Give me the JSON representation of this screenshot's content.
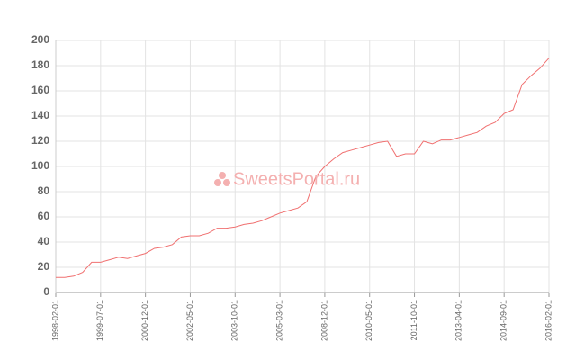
{
  "chart_data": {
    "type": "line",
    "watermark": "SweetsPortal.ru",
    "categories": [
      "1998-02-01",
      null,
      null,
      null,
      null,
      "1999-07-01",
      null,
      null,
      null,
      null,
      "2000-12-01",
      null,
      null,
      null,
      null,
      "2002-05-01",
      null,
      null,
      null,
      null,
      "2003-10-01",
      null,
      null,
      null,
      null,
      "2005-03-01",
      null,
      null,
      null,
      null,
      "2008-12-01",
      null,
      null,
      null,
      null,
      "2010-05-01",
      null,
      null,
      null,
      null,
      "2011-10-01",
      null,
      null,
      null,
      null,
      "2013-04-01",
      null,
      null,
      null,
      null,
      "2014-09-01",
      null,
      null,
      null,
      null,
      "2016-02-01"
    ],
    "series": [
      {
        "color": "#f07070",
        "values": [
          12,
          12,
          13,
          16,
          24,
          24,
          26,
          28,
          27,
          29,
          31,
          35,
          36,
          38,
          44,
          45,
          45,
          47,
          51,
          51,
          52,
          54,
          55,
          57,
          60,
          63,
          65,
          67,
          72,
          92,
          100,
          106,
          111,
          113,
          115,
          117,
          119,
          120,
          108,
          110,
          110,
          120,
          118,
          121,
          121,
          123,
          125,
          127,
          132,
          135,
          142,
          145,
          165,
          172,
          178,
          186
        ]
      }
    ],
    "ylim": [
      0,
      200
    ],
    "yticks": [
      0,
      20,
      40,
      60,
      80,
      100,
      120,
      140,
      160,
      180,
      200
    ],
    "grid": true
  }
}
